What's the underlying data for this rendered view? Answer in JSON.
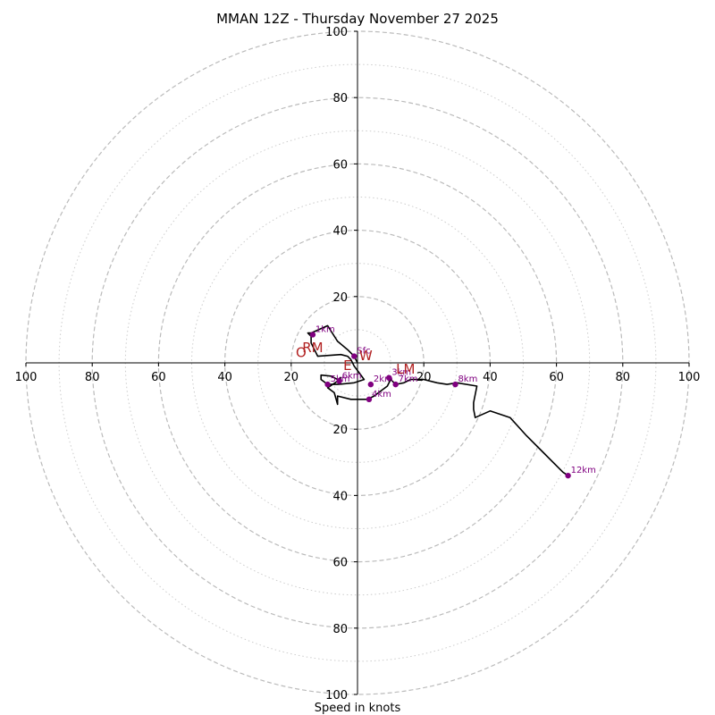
{
  "chart_data": {
    "type": "hodograph",
    "title": "MMAN 12Z - Thursday November 27 2025",
    "xlabel": "Speed in knots",
    "range": [
      -100,
      100
    ],
    "major_rings": [
      20,
      40,
      60,
      80,
      100
    ],
    "minor_rings": [
      10,
      30,
      50,
      70,
      90
    ],
    "x_ticks": [
      {
        "value": -100,
        "label": "100"
      },
      {
        "value": -80,
        "label": "80"
      },
      {
        "value": -60,
        "label": "60"
      },
      {
        "value": -40,
        "label": "40"
      },
      {
        "value": -20,
        "label": "20"
      },
      {
        "value": 20,
        "label": "20"
      },
      {
        "value": 40,
        "label": "40"
      },
      {
        "value": 60,
        "label": "60"
      },
      {
        "value": 80,
        "label": "80"
      },
      {
        "value": 100,
        "label": "100"
      }
    ],
    "y_ticks": [
      {
        "value": 100,
        "label": "100"
      },
      {
        "value": 80,
        "label": "80"
      },
      {
        "value": 60,
        "label": "60"
      },
      {
        "value": 40,
        "label": "40"
      },
      {
        "value": 20,
        "label": "20"
      },
      {
        "value": -20,
        "label": "20"
      },
      {
        "value": -40,
        "label": "40"
      },
      {
        "value": -60,
        "label": "60"
      },
      {
        "value": -80,
        "label": "80"
      },
      {
        "value": -100,
        "label": "100"
      }
    ],
    "series": [
      {
        "name": "hodograph",
        "color": "#000000",
        "points": [
          [
            0.0,
            0.0
          ],
          [
            -1.0,
            2.0
          ],
          [
            -3.0,
            4.0
          ],
          [
            -6.0,
            6.5
          ],
          [
            -9.0,
            11.2
          ],
          [
            -14.0,
            9.0
          ],
          [
            -15.0,
            9.0
          ],
          [
            -14.0,
            8.0
          ],
          [
            -14.0,
            6.0
          ],
          [
            -13.0,
            4.0
          ],
          [
            -12.0,
            2.0
          ],
          [
            -5.0,
            2.5
          ],
          [
            -3.0,
            2.0
          ],
          [
            -2.0,
            1.0
          ],
          [
            -1.0,
            -1.0
          ],
          [
            0.5,
            -3.0
          ],
          [
            2.0,
            -5.0
          ],
          [
            -1.0,
            -6.0
          ],
          [
            -6.0,
            -6.5
          ],
          [
            -9.0,
            -6.5
          ],
          [
            -11.0,
            -5.0
          ],
          [
            -11.0,
            -3.7
          ],
          [
            -8.0,
            -4.0
          ],
          [
            -6.0,
            -5.0
          ],
          [
            -5.0,
            -4.5
          ],
          [
            -6.0,
            -5.5
          ],
          [
            -9.0,
            -7.5
          ],
          [
            -7.0,
            -9.0
          ],
          [
            -6.0,
            -12.5
          ],
          [
            -6.0,
            -10.0
          ],
          [
            -2.0,
            -11.0
          ],
          [
            0.0,
            -11.0
          ],
          [
            3.0,
            -11.0
          ],
          [
            5.0,
            -10.0
          ],
          [
            7.0,
            -8.5
          ],
          [
            9.0,
            -7.0
          ],
          [
            10.0,
            -5.0
          ],
          [
            11.5,
            -6.5
          ],
          [
            14.0,
            -6.0
          ],
          [
            16.0,
            -5.0
          ],
          [
            20.0,
            -5.0
          ],
          [
            24.0,
            -6.0
          ],
          [
            27.0,
            -6.5
          ],
          [
            30.0,
            -6.0
          ],
          [
            36.0,
            -7.0
          ],
          [
            35.0,
            -12.0
          ],
          [
            35.0,
            -14.0
          ],
          [
            35.5,
            -16.5
          ],
          [
            40.0,
            -14.5
          ],
          [
            46.0,
            -16.5
          ],
          [
            51.0,
            -22.0
          ],
          [
            56.5,
            -27.5
          ],
          [
            62.0,
            -33.0
          ],
          [
            63.5,
            -34.0
          ]
        ]
      }
    ],
    "height_markers": [
      {
        "label": "Sfc",
        "u": -1.0,
        "v": 2.0
      },
      {
        "label": "1km",
        "u": -13.5,
        "v": 8.5
      },
      {
        "label": "2km",
        "u": 4.0,
        "v": -6.5
      },
      {
        "label": "3km",
        "u": 9.5,
        "v": -4.5
      },
      {
        "label": "4km",
        "u": 3.5,
        "v": -11.0
      },
      {
        "label": "5km",
        "u": -9.0,
        "v": -6.5
      },
      {
        "label": "6km",
        "u": -5.5,
        "v": -5.5
      },
      {
        "label": "7km",
        "u": 11.5,
        "v": -6.5
      },
      {
        "label": "8km",
        "u": 29.5,
        "v": -6.5
      },
      {
        "label": "12km",
        "u": 63.5,
        "v": -34.0
      }
    ],
    "vector_labels": [
      {
        "label": "RM",
        "u": -13.5,
        "v": 4.5
      },
      {
        "label": "O",
        "u": -17.0,
        "v": 3.0
      },
      {
        "label": "E",
        "u": -3.0,
        "v": -1.0
      },
      {
        "label": "W",
        "u": 2.5,
        "v": 2.0
      },
      {
        "label": "LM",
        "u": 14.5,
        "v": -2.0
      }
    ],
    "colors": {
      "line": "#000000",
      "marker": "#800080",
      "vector_label": "#b22222",
      "major_ring": "#bbbbbb",
      "minor_ring": "#cccccc"
    }
  }
}
